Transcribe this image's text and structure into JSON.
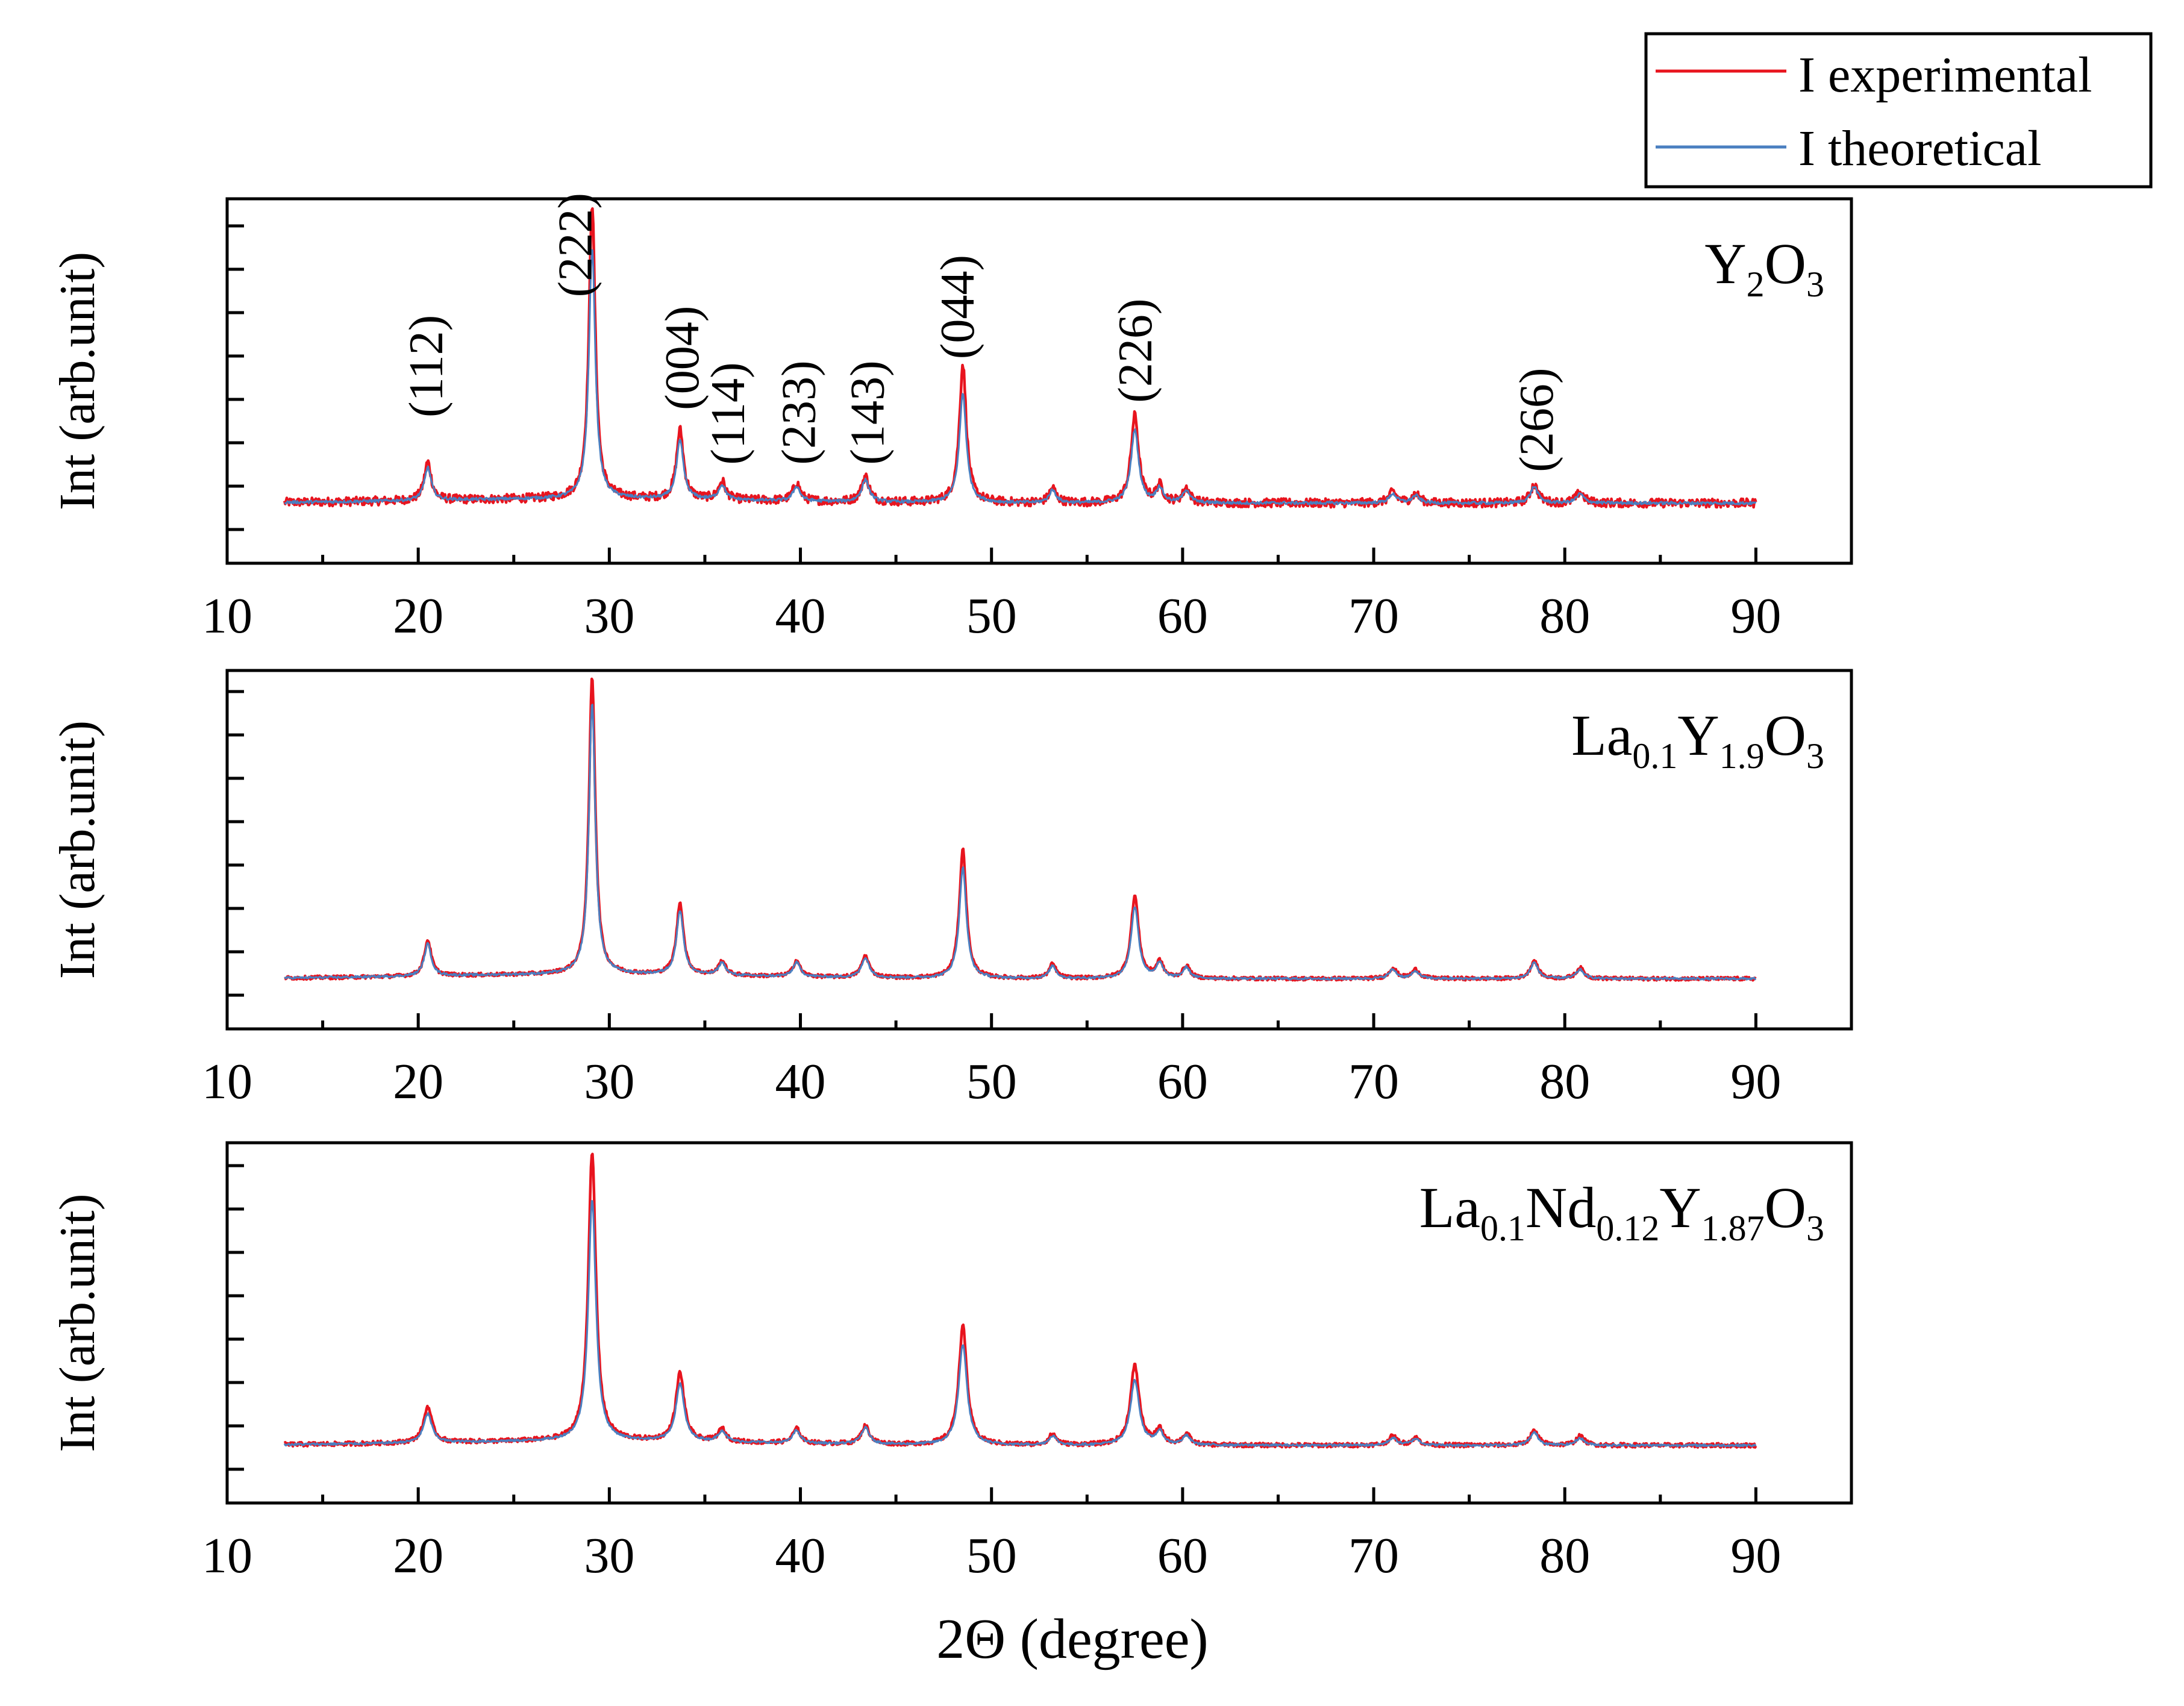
{
  "figure": {
    "xlabel": "2Θ (degree)",
    "ylabel": "Int (arb.unit)",
    "legend": {
      "placement": "top-right",
      "entries": [
        {
          "label": "I experimental",
          "color": "#e8141e"
        },
        {
          "label": "I theoretical",
          "color": "#4a7fc0"
        }
      ]
    }
  },
  "chart_data": [
    {
      "type": "line",
      "title": "Y2O3",
      "title_parts": [
        {
          "text": "Y",
          "sub": false
        },
        {
          "text": "2",
          "sub": true
        },
        {
          "text": "O",
          "sub": false
        },
        {
          "text": "3",
          "sub": true
        }
      ],
      "xlabel": "2Θ (degree)",
      "ylabel": "Int (arb.unit)",
      "xlim": [
        10,
        95
      ],
      "ylim": [
        0,
        1.0
      ],
      "x_ticks": [
        10,
        20,
        30,
        40,
        50,
        60,
        70,
        80,
        90
      ],
      "x_range": [
        13,
        90
      ],
      "baseline": 0.165,
      "series": [
        {
          "name": "I experimental",
          "color": "#e8141e",
          "noise": 0.012
        },
        {
          "name": "I theoretical",
          "color": "#4a7fc0",
          "noise": 0.004
        }
      ],
      "peaks": [
        {
          "pos": 20.5,
          "exp": 0.105,
          "theo": 0.09,
          "w": 0.22
        },
        {
          "pos": 29.1,
          "exp": 0.81,
          "theo": 0.69,
          "w": 0.2
        },
        {
          "pos": 33.7,
          "exp": 0.19,
          "theo": 0.16,
          "w": 0.22
        },
        {
          "pos": 35.9,
          "exp": 0.05,
          "theo": 0.04,
          "w": 0.22
        },
        {
          "pos": 39.8,
          "exp": 0.05,
          "theo": 0.04,
          "w": 0.22
        },
        {
          "pos": 43.4,
          "exp": 0.07,
          "theo": 0.06,
          "w": 0.24
        },
        {
          "pos": 48.5,
          "exp": 0.38,
          "theo": 0.3,
          "w": 0.22
        },
        {
          "pos": 53.2,
          "exp": 0.04,
          "theo": 0.035,
          "w": 0.22
        },
        {
          "pos": 57.5,
          "exp": 0.24,
          "theo": 0.2,
          "w": 0.24
        },
        {
          "pos": 58.8,
          "exp": 0.045,
          "theo": 0.04,
          "w": 0.22
        },
        {
          "pos": 60.2,
          "exp": 0.04,
          "theo": 0.035,
          "w": 0.22
        },
        {
          "pos": 71.0,
          "exp": 0.03,
          "theo": 0.025,
          "w": 0.24
        },
        {
          "pos": 72.2,
          "exp": 0.025,
          "theo": 0.02,
          "w": 0.24
        },
        {
          "pos": 78.4,
          "exp": 0.05,
          "theo": 0.045,
          "w": 0.24
        },
        {
          "pos": 80.8,
          "exp": 0.03,
          "theo": 0.025,
          "w": 0.24
        }
      ],
      "annotations": [
        {
          "label": "(112)",
          "x": 20.5,
          "y": 0.4
        },
        {
          "label": "(222)",
          "x": 28.3,
          "y": 0.73
        },
        {
          "label": "(004)",
          "x": 33.9,
          "y": 0.42
        },
        {
          "label": "(114)",
          "x": 36.3,
          "y": 0.27
        },
        {
          "label": "(233)",
          "x": 40.0,
          "y": 0.27
        },
        {
          "label": "(143)",
          "x": 43.6,
          "y": 0.27
        },
        {
          "label": "(044)",
          "x": 48.3,
          "y": 0.56
        },
        {
          "label": "(226)",
          "x": 57.6,
          "y": 0.44
        },
        {
          "label": "(266)",
          "x": 78.6,
          "y": 0.25
        }
      ]
    },
    {
      "type": "line",
      "title": "La0.1Y1.9O3",
      "title_parts": [
        {
          "text": "La",
          "sub": false
        },
        {
          "text": "0.1",
          "sub": true
        },
        {
          "text": "Y",
          "sub": false
        },
        {
          "text": "1.9",
          "sub": true
        },
        {
          "text": "O",
          "sub": false
        },
        {
          "text": "3",
          "sub": true
        }
      ],
      "xlabel": "2Θ (degree)",
      "ylabel": "Int (arb.unit)",
      "xlim": [
        10,
        95
      ],
      "ylim": [
        0,
        1.0
      ],
      "x_ticks": [
        10,
        20,
        30,
        40,
        50,
        60,
        70,
        80,
        90
      ],
      "x_range": [
        13,
        90
      ],
      "baseline": 0.14,
      "series": [
        {
          "name": "I experimental",
          "color": "#e8141e",
          "noise": 0.005
        },
        {
          "name": "I theoretical",
          "color": "#4a7fc0",
          "noise": 0.003
        }
      ],
      "peaks": [
        {
          "pos": 20.5,
          "exp": 0.1,
          "theo": 0.09,
          "w": 0.22
        },
        {
          "pos": 29.1,
          "exp": 0.83,
          "theo": 0.76,
          "w": 0.2
        },
        {
          "pos": 33.7,
          "exp": 0.2,
          "theo": 0.18,
          "w": 0.22
        },
        {
          "pos": 35.9,
          "exp": 0.04,
          "theo": 0.035,
          "w": 0.22
        },
        {
          "pos": 39.8,
          "exp": 0.045,
          "theo": 0.04,
          "w": 0.22
        },
        {
          "pos": 43.4,
          "exp": 0.06,
          "theo": 0.055,
          "w": 0.24
        },
        {
          "pos": 48.5,
          "exp": 0.36,
          "theo": 0.31,
          "w": 0.22
        },
        {
          "pos": 53.2,
          "exp": 0.04,
          "theo": 0.035,
          "w": 0.22
        },
        {
          "pos": 57.5,
          "exp": 0.23,
          "theo": 0.2,
          "w": 0.24
        },
        {
          "pos": 58.8,
          "exp": 0.045,
          "theo": 0.04,
          "w": 0.22
        },
        {
          "pos": 60.2,
          "exp": 0.035,
          "theo": 0.03,
          "w": 0.22
        },
        {
          "pos": 71.0,
          "exp": 0.03,
          "theo": 0.025,
          "w": 0.24
        },
        {
          "pos": 72.2,
          "exp": 0.025,
          "theo": 0.02,
          "w": 0.24
        },
        {
          "pos": 78.4,
          "exp": 0.05,
          "theo": 0.045,
          "w": 0.24
        },
        {
          "pos": 80.8,
          "exp": 0.03,
          "theo": 0.025,
          "w": 0.24
        }
      ],
      "annotations": []
    },
    {
      "type": "line",
      "title": "La0.1Nd0.12Y1.87O3",
      "title_parts": [
        {
          "text": "La",
          "sub": false
        },
        {
          "text": "0.1",
          "sub": true
        },
        {
          "text": "Nd",
          "sub": false
        },
        {
          "text": "0.12",
          "sub": true
        },
        {
          "text": "Y",
          "sub": false
        },
        {
          "text": "1.87",
          "sub": true
        },
        {
          "text": "O",
          "sub": false
        },
        {
          "text": "3",
          "sub": true
        }
      ],
      "xlabel": "2Θ (degree)",
      "ylabel": "Int (arb.unit)",
      "xlim": [
        10,
        95
      ],
      "ylim": [
        0,
        1.0
      ],
      "x_ticks": [
        10,
        20,
        30,
        40,
        50,
        60,
        70,
        80,
        90
      ],
      "x_range": [
        13,
        90
      ],
      "baseline": 0.16,
      "series": [
        {
          "name": "I experimental",
          "color": "#e8141e",
          "noise": 0.006
        },
        {
          "name": "I theoretical",
          "color": "#4a7fc0",
          "noise": 0.003
        }
      ],
      "peaks": [
        {
          "pos": 20.5,
          "exp": 0.1,
          "theo": 0.08,
          "w": 0.26
        },
        {
          "pos": 29.1,
          "exp": 0.8,
          "theo": 0.67,
          "w": 0.24
        },
        {
          "pos": 33.7,
          "exp": 0.19,
          "theo": 0.16,
          "w": 0.26
        },
        {
          "pos": 35.9,
          "exp": 0.035,
          "theo": 0.03,
          "w": 0.24
        },
        {
          "pos": 39.8,
          "exp": 0.04,
          "theo": 0.035,
          "w": 0.24
        },
        {
          "pos": 43.4,
          "exp": 0.05,
          "theo": 0.045,
          "w": 0.26
        },
        {
          "pos": 48.5,
          "exp": 0.33,
          "theo": 0.28,
          "w": 0.26
        },
        {
          "pos": 53.2,
          "exp": 0.03,
          "theo": 0.025,
          "w": 0.24
        },
        {
          "pos": 57.5,
          "exp": 0.22,
          "theo": 0.18,
          "w": 0.28
        },
        {
          "pos": 58.8,
          "exp": 0.04,
          "theo": 0.035,
          "w": 0.24
        },
        {
          "pos": 60.2,
          "exp": 0.03,
          "theo": 0.025,
          "w": 0.24
        },
        {
          "pos": 71.0,
          "exp": 0.025,
          "theo": 0.02,
          "w": 0.26
        },
        {
          "pos": 72.2,
          "exp": 0.02,
          "theo": 0.018,
          "w": 0.26
        },
        {
          "pos": 78.4,
          "exp": 0.04,
          "theo": 0.035,
          "w": 0.26
        },
        {
          "pos": 80.8,
          "exp": 0.025,
          "theo": 0.02,
          "w": 0.26
        }
      ],
      "annotations": []
    }
  ]
}
